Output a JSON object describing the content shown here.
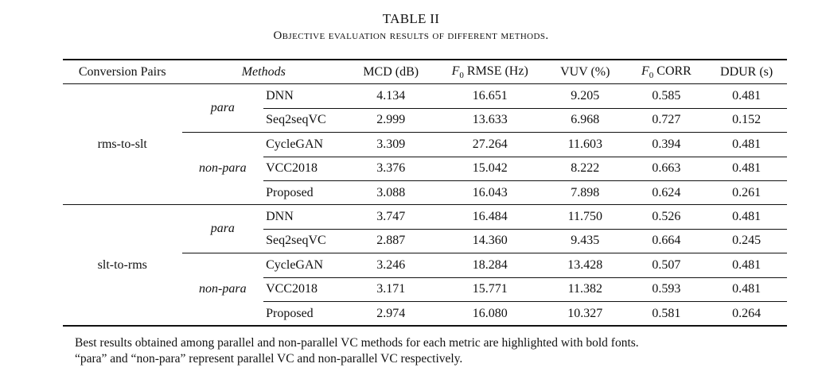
{
  "caption": {
    "title": "TABLE II",
    "subtitle": "Objective evaluation results of different methods."
  },
  "header": {
    "pairs": "Conversion Pairs",
    "methods": "Methods",
    "mcd": "MCD (dB)",
    "rmse_suffix": " RMSE (Hz)",
    "vuv": "VUV (%)",
    "corr_suffix": " CORR",
    "ddur": "DDUR (s)",
    "f0_letter": "F",
    "f0_sub": "0"
  },
  "groups": [
    {
      "pair": "rms-to-slt",
      "para_label": "para",
      "nonpara_label": "non-para",
      "rows": [
        {
          "method": "DNN",
          "mcd": "4.134",
          "rmse": "16.651",
          "vuv": "9.205",
          "corr": "0.585",
          "ddur": "0.481"
        },
        {
          "method": "Seq2seqVC",
          "mcd": "2.999",
          "rmse": "13.633",
          "vuv": "6.968",
          "corr": "0.727",
          "ddur": "0.152"
        },
        {
          "method": "CycleGAN",
          "mcd": "3.309",
          "rmse": "27.264",
          "vuv": "11.603",
          "corr": "0.394",
          "ddur": "0.481"
        },
        {
          "method": "VCC2018",
          "mcd": "3.376",
          "rmse": "15.042",
          "vuv": "8.222",
          "corr": "0.663",
          "ddur": "0.481"
        },
        {
          "method": "Proposed",
          "mcd": "3.088",
          "rmse": "16.043",
          "vuv": "7.898",
          "corr": "0.624",
          "ddur": "0.261"
        }
      ]
    },
    {
      "pair": "slt-to-rms",
      "para_label": "para",
      "nonpara_label": "non-para",
      "rows": [
        {
          "method": "DNN",
          "mcd": "3.747",
          "rmse": "16.484",
          "vuv": "11.750",
          "corr": "0.526",
          "ddur": "0.481"
        },
        {
          "method": "Seq2seqVC",
          "mcd": "2.887",
          "rmse": "14.360",
          "vuv": "9.435",
          "corr": "0.664",
          "ddur": "0.245"
        },
        {
          "method": "CycleGAN",
          "mcd": "3.246",
          "rmse": "18.284",
          "vuv": "13.428",
          "corr": "0.507",
          "ddur": "0.481"
        },
        {
          "method": "VCC2018",
          "mcd": "3.171",
          "rmse": "15.771",
          "vuv": "11.382",
          "corr": "0.593",
          "ddur": "0.481"
        },
        {
          "method": "Proposed",
          "mcd": "2.974",
          "rmse": "16.080",
          "vuv": "10.327",
          "corr": "0.581",
          "ddur": "0.264"
        }
      ]
    }
  ],
  "footnote": {
    "line1": "Best results obtained among parallel and non-parallel VC methods for each metric are highlighted with bold fonts.",
    "line2": "“para” and “non-para” represent parallel VC and non-parallel VC respectively."
  }
}
